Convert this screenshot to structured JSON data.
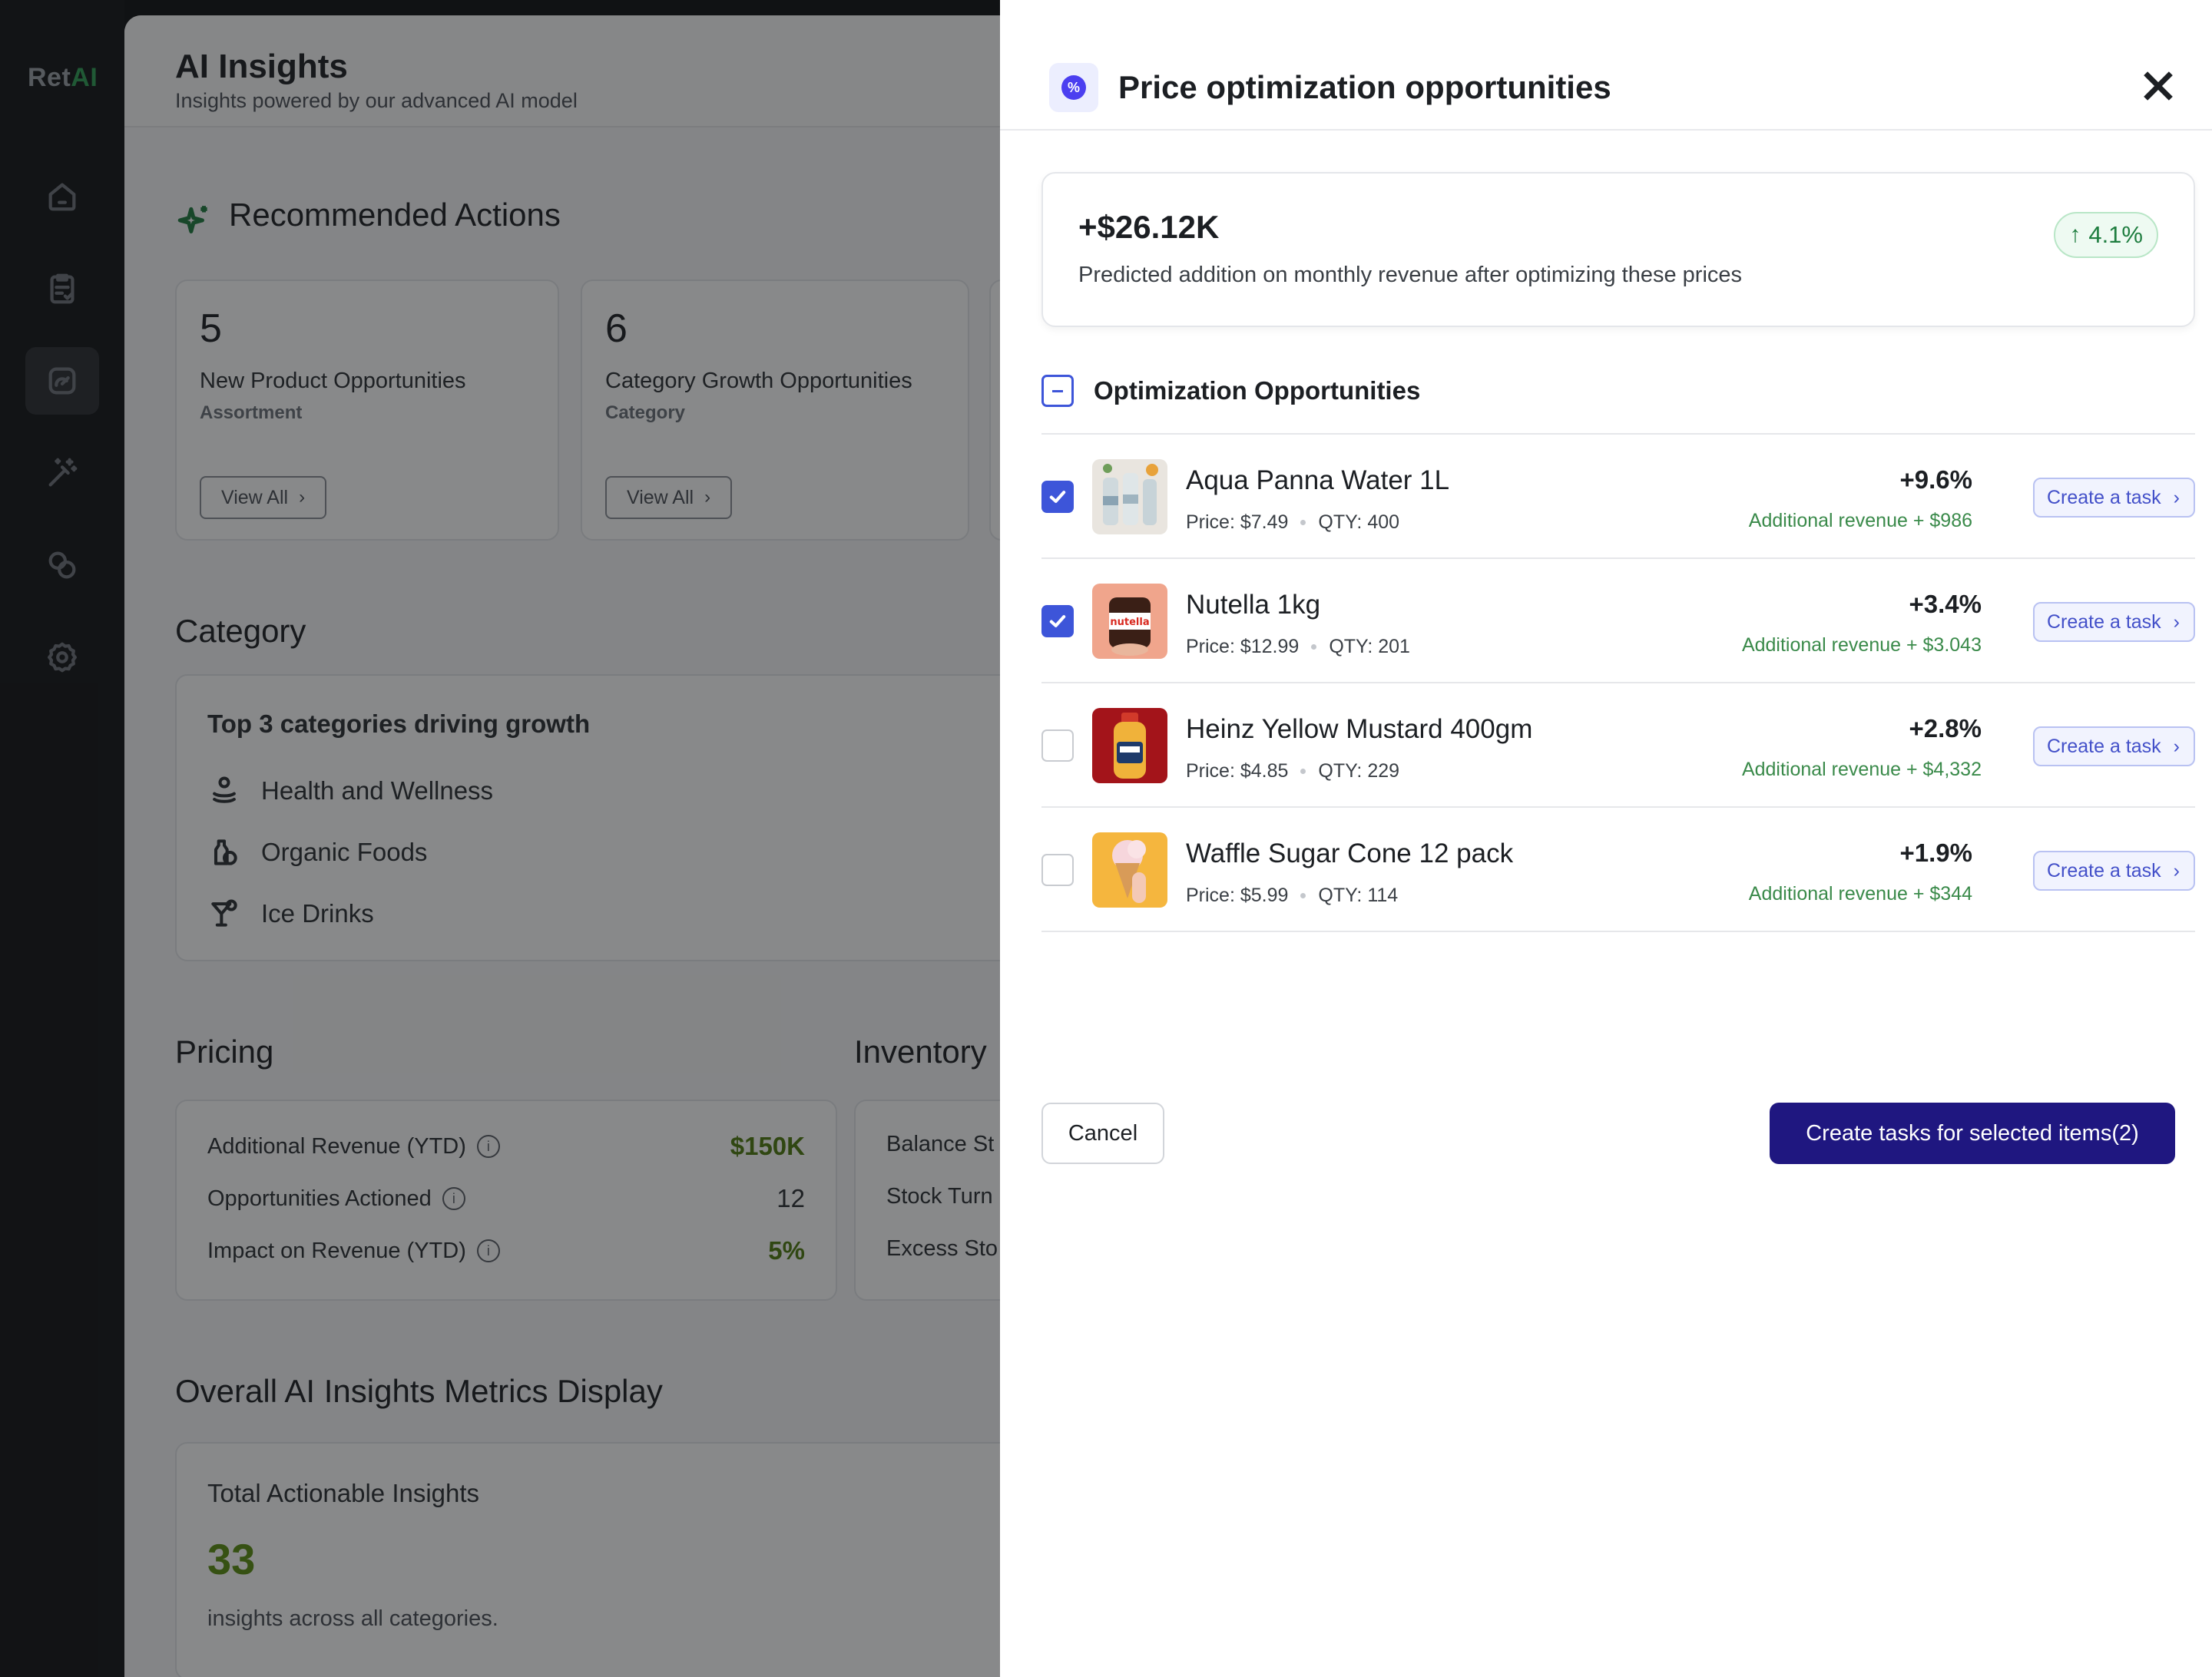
{
  "app": {
    "logo_prefix": "Ret",
    "logo_suffix": "AI"
  },
  "sidebar": {
    "items": [
      {
        "icon": "home-icon"
      },
      {
        "icon": "clipboard-icon"
      },
      {
        "icon": "insights-gauge-icon",
        "active": true
      },
      {
        "icon": "magic-wand-icon"
      },
      {
        "icon": "shapes-icon"
      },
      {
        "icon": "gear-icon"
      }
    ]
  },
  "main": {
    "title": "AI Insights",
    "subtitle": "Insights powered by our advanced AI model",
    "recommended": {
      "title": "Recommended Actions",
      "cards": [
        {
          "count": "5",
          "label": "New Product Opportunities",
          "type": "Assortment",
          "button": "View All"
        },
        {
          "count": "6",
          "label": "Category Growth Opportunities",
          "type": "Category",
          "button": "View All"
        }
      ]
    },
    "category": {
      "title": "Category",
      "card_title": "Top 3 categories driving growth",
      "items": [
        "Health and Wellness",
        "Organic Foods",
        "Ice Drinks"
      ]
    },
    "pricing": {
      "title": "Pricing",
      "rows": [
        {
          "label": "Additional Revenue (YTD)",
          "value": "$150K"
        },
        {
          "label": "Opportunities Actioned",
          "value": "12"
        },
        {
          "label": "Impact on Revenue (YTD)",
          "value": "5%"
        }
      ]
    },
    "inventory": {
      "title": "Inventory",
      "rows": [
        "Balance St",
        "Stock Turn",
        "Excess Sto"
      ]
    },
    "overall": {
      "title": "Overall AI Insights Metrics Display",
      "card_title": "Total Actionable Insights",
      "value": "33",
      "description": "insights across all categories."
    }
  },
  "drawer": {
    "title": "Price optimization opportunities",
    "summary": {
      "amount": "+$26.12K",
      "description": "Predicted addition on monthly revenue after optimizing these prices",
      "change": "4.1%"
    },
    "section_title": "Optimization Opportunities",
    "items": [
      {
        "name": "Aqua Panna Water 1L",
        "price": "Price: $7.49",
        "qty": "QTY: 400",
        "pct": "+9.6%",
        "revenue": "Additional revenue + $986",
        "checked": true,
        "button": "Create a task"
      },
      {
        "name": "Nutella 1kg",
        "price": "Price: $12.99",
        "qty": "QTY: 201",
        "pct": "+3.4%",
        "revenue": "Additional revenue + $3.043",
        "checked": true,
        "button": "Create a task"
      },
      {
        "name": "Heinz Yellow Mustard 400gm",
        "price": "Price: $4.85",
        "qty": "QTY: 229",
        "pct": "+2.8%",
        "revenue": "Additional revenue + $4,332",
        "checked": false,
        "button": "Create a task"
      },
      {
        "name": "Waffle Sugar Cone 12 pack",
        "price": "Price: $5.99",
        "qty": "QTY: 114",
        "pct": "+1.9%",
        "revenue": "Additional revenue + $344",
        "checked": false,
        "button": "Create a task"
      }
    ],
    "cancel_label": "Cancel",
    "submit_label": "Create tasks for selected items(2)"
  },
  "colors": {
    "primary": "#1f1780",
    "checkbox": "#3d55d9",
    "positive": "#1e7d3f",
    "brand_ai": "#2f9e55"
  }
}
